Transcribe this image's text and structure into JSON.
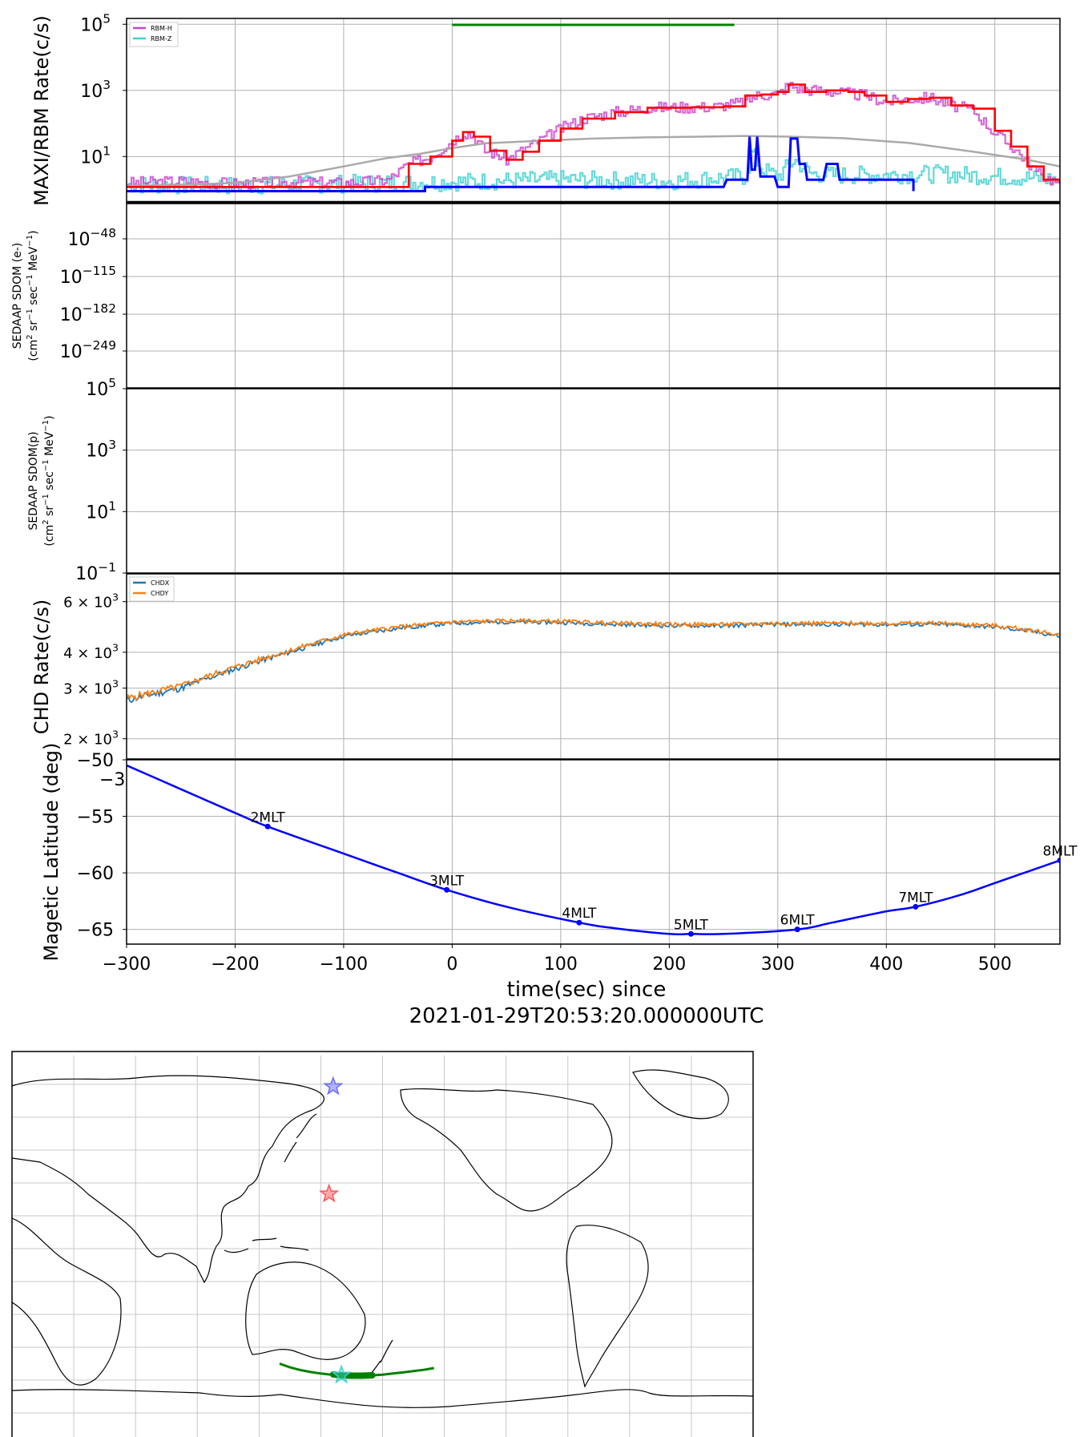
{
  "figure": {
    "xlabel_line1": "time(sec) since",
    "xlabel_line2": "2021-01-29T20:53:20.000000UTC",
    "x_ticks": [
      "−300",
      "−200",
      "−100",
      "0",
      "100",
      "200",
      "300",
      "400",
      "500"
    ]
  },
  "chart_data": [
    {
      "panel": "maxi-rbm-rate",
      "type": "line",
      "ylabel": "MAXI/RBM Rate(c/s)",
      "yscale": "log",
      "ylim": [
        0.4,
        150000
      ],
      "xlim": [
        -300,
        560
      ],
      "y_ticks": [
        {
          "base": "10",
          "exp": "5"
        },
        {
          "base": "10",
          "exp": "3"
        },
        {
          "base": "10",
          "exp": "1"
        }
      ],
      "legend": [
        "RBM-H",
        "RBM-Z"
      ],
      "legend_position": "top-left",
      "grid": true,
      "colors": {
        "rbm_h": "#cc44cc",
        "rbm_z": "#40d0d0",
        "red": "#ff0000",
        "blue": "#0000ff",
        "gray": "#aaaaaa",
        "green": "#008000",
        "black": "#000000"
      },
      "series": [
        {
          "name": "RBM-H",
          "points": [
            [
              -300,
              1.6
            ],
            [
              -250,
              1.8
            ],
            [
              -200,
              1.5
            ],
            [
              -150,
              1.7
            ],
            [
              -100,
              1.6
            ],
            [
              -60,
              1.9
            ],
            [
              -40,
              6
            ],
            [
              -20,
              10
            ],
            [
              0,
              30
            ],
            [
              10,
              55
            ],
            [
              20,
              40
            ],
            [
              30,
              15
            ],
            [
              40,
              12
            ],
            [
              50,
              8
            ],
            [
              60,
              13
            ],
            [
              80,
              30
            ],
            [
              100,
              70
            ],
            [
              120,
              140
            ],
            [
              150,
              220
            ],
            [
              180,
              300
            ],
            [
              210,
              310
            ],
            [
              240,
              320
            ],
            [
              270,
              450
            ],
            [
              280,
              700
            ],
            [
              300,
              800
            ],
            [
              310,
              1500
            ],
            [
              320,
              1100
            ],
            [
              340,
              1000
            ],
            [
              380,
              700
            ],
            [
              400,
              450
            ],
            [
              420,
              550
            ],
            [
              440,
              600
            ],
            [
              460,
              350
            ],
            [
              480,
              250
            ],
            [
              500,
              50
            ],
            [
              520,
              15
            ],
            [
              540,
              3
            ],
            [
              560,
              1.5
            ]
          ]
        },
        {
          "name": "RBM-Z",
          "points": [
            [
              -300,
              1.4
            ],
            [
              -200,
              1.3
            ],
            [
              -100,
              1.5
            ],
            [
              0,
              1.7
            ],
            [
              100,
              2
            ],
            [
              200,
              1.8
            ],
            [
              270,
              2.5
            ],
            [
              275,
              15
            ],
            [
              285,
              4
            ],
            [
              300,
              2.5
            ],
            [
              315,
              8
            ],
            [
              330,
              3
            ],
            [
              350,
              2.7
            ],
            [
              400,
              2.8
            ],
            [
              450,
              3
            ],
            [
              500,
              2.5
            ],
            [
              560,
              2
            ]
          ]
        },
        {
          "points": [
            [
              -300,
              1.2
            ],
            [
              -50,
              1.2
            ],
            [
              -40,
              6
            ],
            [
              -20,
              10
            ],
            [
              0,
              30
            ],
            [
              10,
              55
            ],
            [
              20,
              40
            ],
            [
              35,
              15
            ],
            [
              50,
              8
            ],
            [
              65,
              14
            ],
            [
              80,
              30
            ],
            [
              100,
              70
            ],
            [
              120,
              140
            ],
            [
              150,
              220
            ],
            [
              180,
              300
            ],
            [
              220,
              310
            ],
            [
              250,
              330
            ],
            [
              270,
              700
            ],
            [
              285,
              750
            ],
            [
              300,
              900
            ],
            [
              310,
              1500
            ],
            [
              325,
              900
            ],
            [
              345,
              1000
            ],
            [
              365,
              900
            ],
            [
              380,
              700
            ],
            [
              400,
              450
            ],
            [
              420,
              550
            ],
            [
              440,
              600
            ],
            [
              460,
              350
            ],
            [
              480,
              280
            ],
            [
              500,
              60
            ],
            [
              515,
              20
            ],
            [
              530,
              5
            ],
            [
              545,
              2
            ],
            [
              560,
              1.5
            ]
          ]
        },
        {
          "points": [
            [
              -300,
              0.9
            ],
            [
              -25,
              0.9
            ],
            [
              -25,
              1.2
            ],
            [
              250,
              1.2
            ],
            [
              253,
              2
            ],
            [
              272,
              2
            ],
            [
              274,
              40
            ],
            [
              276,
              4
            ],
            [
              279,
              4
            ],
            [
              281,
              40
            ],
            [
              284,
              2.5
            ],
            [
              297,
              2.5
            ],
            [
              300,
              1.2
            ],
            [
              310,
              1.2
            ],
            [
              312,
              35
            ],
            [
              318,
              35
            ],
            [
              320,
              6
            ],
            [
              325,
              6
            ],
            [
              327,
              2
            ],
            [
              342,
              2
            ],
            [
              345,
              6
            ],
            [
              355,
              6
            ],
            [
              357,
              2
            ],
            [
              425,
              2
            ],
            [
              425,
              0.9
            ]
          ]
        },
        {
          "points": [
            [
              -300,
              1.3
            ],
            [
              -250,
              1.4
            ],
            [
              -200,
              1.6
            ],
            [
              -150,
              2.5
            ],
            [
              -100,
              5
            ],
            [
              -60,
              9
            ],
            [
              -30,
              12
            ],
            [
              0,
              18
            ],
            [
              30,
              25
            ],
            [
              80,
              30
            ],
            [
              130,
              35
            ],
            [
              180,
              38
            ],
            [
              230,
              40
            ],
            [
              270,
              42
            ],
            [
              310,
              40
            ],
            [
              360,
              36
            ],
            [
              420,
              26
            ],
            [
              480,
              14
            ],
            [
              530,
              8
            ],
            [
              560,
              5
            ]
          ]
        }
      ],
      "indicator_bar": {
        "x": [
          0,
          260
        ]
      }
    },
    {
      "panel": "sedaap-sdom-e",
      "type": "line",
      "ylabel_line1": "SEDAAP SDOM (e-)",
      "ylabel_line2_parts": [
        "(cm",
        "2",
        " sr",
        "−1",
        " sec",
        "−1",
        " MeV",
        "−1",
        ")"
      ],
      "yscale": "log",
      "y_ticks": [
        {
          "base": "10",
          "exp": "−48"
        },
        {
          "base": "10",
          "exp": "−115"
        },
        {
          "base": "10",
          "exp": "−182"
        },
        {
          "base": "10",
          "exp": "−249"
        }
      ],
      "grid": true,
      "series": []
    },
    {
      "panel": "sedaap-sdom-p",
      "type": "line",
      "ylabel_line1": "SEDAAP SDOM(p)",
      "ylabel_line2_parts": [
        "(cm",
        "2",
        " sr",
        "−1",
        " sec",
        "−1",
        " MeV",
        "−1",
        ")"
      ],
      "yscale": "log",
      "ylim": [
        0.1,
        100000
      ],
      "y_ticks": [
        {
          "base": "10",
          "exp": "5"
        },
        {
          "base": "10",
          "exp": "3"
        },
        {
          "base": "10",
          "exp": "1"
        },
        {
          "base": "10",
          "exp": "−1"
        }
      ],
      "grid": true,
      "series": []
    },
    {
      "panel": "chd-rate",
      "type": "line",
      "ylabel": "CHD Rate(c/s)",
      "yscale": "log",
      "ylim": [
        1700,
        7500
      ],
      "y_ticks": [
        {
          "pre": "6 × 10",
          "exp": "3"
        },
        {
          "pre": "4 × 10",
          "exp": "3"
        },
        {
          "pre": "3 × 10",
          "exp": "3"
        },
        {
          "pre": "2 × 10",
          "exp": "3"
        }
      ],
      "legend": [
        "CHDX",
        "CHDY"
      ],
      "legend_position": "top-left",
      "grid": true,
      "colors": {
        "chdx": "#1f77b4",
        "chdy": "#ff7f0e"
      },
      "series": [
        {
          "name": "CHDX",
          "points": [
            [
              -300,
              2720
            ],
            [
              -250,
              3000
            ],
            [
              -200,
              3500
            ],
            [
              -150,
              4000
            ],
            [
              -100,
              4550
            ],
            [
              -50,
              4850
            ],
            [
              0,
              5050
            ],
            [
              50,
              5100
            ],
            [
              100,
              5080
            ],
            [
              150,
              5000
            ],
            [
              200,
              4950
            ],
            [
              250,
              4950
            ],
            [
              300,
              5000
            ],
            [
              350,
              5000
            ],
            [
              400,
              5000
            ],
            [
              450,
              5000
            ],
            [
              500,
              4900
            ],
            [
              530,
              4750
            ],
            [
              560,
              4550
            ]
          ]
        },
        {
          "name": "CHDY",
          "points": [
            [
              -300,
              2760
            ],
            [
              -250,
              3050
            ],
            [
              -200,
              3550
            ],
            [
              -150,
              4050
            ],
            [
              -100,
              4600
            ],
            [
              -50,
              4900
            ],
            [
              0,
              5100
            ],
            [
              50,
              5150
            ],
            [
              100,
              5130
            ],
            [
              150,
              5050
            ],
            [
              200,
              5000
            ],
            [
              250,
              5000
            ],
            [
              300,
              5050
            ],
            [
              350,
              5050
            ],
            [
              400,
              5050
            ],
            [
              450,
              5050
            ],
            [
              500,
              4950
            ],
            [
              530,
              4800
            ],
            [
              560,
              4600
            ]
          ]
        }
      ]
    },
    {
      "panel": "magnetic-latitude",
      "type": "line",
      "ylabel": "Magetic Latitude  (deg)",
      "ylim": [
        -66.3,
        -50
      ],
      "y_ticks": [
        "−50",
        "−55",
        "−60",
        "−65"
      ],
      "offset_text": "−3",
      "grid": true,
      "colors": {
        "line": "#0000ff"
      },
      "series": [
        {
          "points": [
            [
              -300,
              -50.5
            ],
            [
              -250,
              -52.6
            ],
            [
              -200,
              -54.7
            ],
            [
              -170,
              -55.9
            ],
            [
              -100,
              -58.3
            ],
            [
              -50,
              -60
            ],
            [
              -5,
              -61.5
            ],
            [
              50,
              -63
            ],
            [
              117,
              -64.4
            ],
            [
              150,
              -64.9
            ],
            [
              200,
              -65.4
            ],
            [
              220,
              -65.4
            ],
            [
              250,
              -65.4
            ],
            [
              318,
              -65.0
            ],
            [
              350,
              -64.4
            ],
            [
              400,
              -63.4
            ],
            [
              427,
              -63.0
            ],
            [
              470,
              -61.9
            ],
            [
              500,
              -60.9
            ],
            [
              560,
              -58.9
            ]
          ]
        }
      ],
      "markers": [
        {
          "label": "2MLT",
          "x": -170,
          "y": -55.9
        },
        {
          "label": "3MLT",
          "x": -5,
          "y": -61.5
        },
        {
          "label": "4MLT",
          "x": 117,
          "y": -64.4
        },
        {
          "label": "5MLT",
          "x": 220,
          "y": -65.4
        },
        {
          "label": "6MLT",
          "x": 318,
          "y": -65.0
        },
        {
          "label": "7MLT",
          "x": 427,
          "y": -63.0
        },
        {
          "label": "8MLT",
          "x": 560,
          "y": -58.9
        }
      ]
    },
    {
      "panel": "world-map",
      "type": "scatter",
      "projection": "plate-carree centered 180°",
      "grid": true,
      "colors": {
        "track": "#008000",
        "star_blue": "#6a6aff",
        "star_red": "#ff5555",
        "star_cyan": "#40d0d0"
      },
      "track": [
        [
          130,
          -52.5
        ],
        [
          135,
          -54.2
        ],
        [
          140,
          -55.4
        ],
        [
          145,
          -56.3
        ],
        [
          150,
          -57.0
        ],
        [
          155,
          -57.5
        ],
        [
          160,
          -57.8
        ],
        [
          165,
          -58.0
        ],
        [
          170,
          -58.0
        ],
        [
          175,
          -57.8
        ],
        [
          180,
          -57.5
        ],
        [
          185,
          -57.0
        ],
        [
          190,
          -56.5
        ],
        [
          195,
          -55.9
        ],
        [
          200,
          -55.3
        ],
        [
          205,
          -54.5
        ]
      ],
      "track_thick": [
        [
          156,
          -57.4
        ],
        [
          175,
          -57.8
        ]
      ],
      "stars": [
        {
          "color": "star_blue",
          "lon": 156,
          "lat": 74
        },
        {
          "color": "star_red",
          "lon": 154,
          "lat": 25
        },
        {
          "color": "star_cyan",
          "lon": 160,
          "lat": -57.7
        }
      ]
    }
  ]
}
